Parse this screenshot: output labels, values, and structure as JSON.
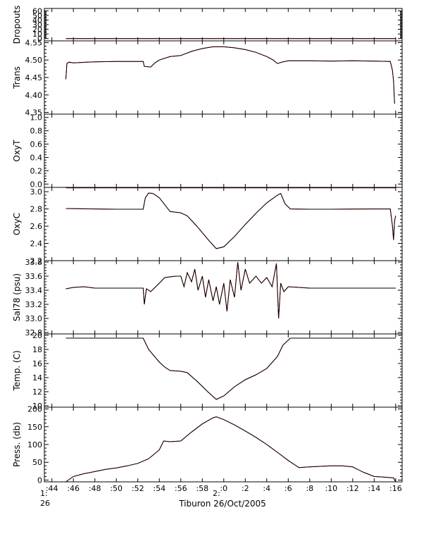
{
  "chart_data": {
    "type": "line",
    "title": "",
    "xlabel": "Tiburon 26/Oct/2005",
    "time_start_label": "1:\n26",
    "time_mid_label": "2:",
    "x_tick_labels": [
      ":44",
      ":46",
      ":48",
      ":50",
      ":52",
      ":54",
      ":56",
      ":58",
      ":0",
      ":2",
      ":4",
      ":6",
      ":8",
      ":10",
      ":12",
      ":14",
      ":16"
    ],
    "x_range_minutes": [
      43.3,
      76.6
    ],
    "colors": {
      "primary": "#000000",
      "secondary": "#ff0000",
      "frame": "#000000"
    },
    "panels": [
      {
        "id": "dropouts",
        "ylabel": "Dropouts",
        "ylim": [
          -5,
          65
        ],
        "yticks": [
          0,
          10,
          20,
          30,
          40,
          50,
          60
        ],
        "ytick_labels": [
          "0",
          "10",
          "20",
          "30",
          "40",
          "50",
          "60"
        ],
        "series": [
          {
            "points": [
              [
                45.3,
                0
              ],
              [
                76.0,
                0
              ]
            ]
          }
        ]
      },
      {
        "id": "trans",
        "ylabel": "Trans",
        "ylim": [
          4.345,
          4.555
        ],
        "yticks": [
          4.35,
          4.4,
          4.45,
          4.5,
          4.55
        ],
        "ytick_labels": [
          "4.35",
          "4.40",
          "4.45",
          "4.50",
          "4.55"
        ],
        "series": [
          {
            "points": [
              [
                45.3,
                4.445
              ],
              [
                45.4,
                4.49
              ],
              [
                45.6,
                4.494
              ],
              [
                46.0,
                4.492
              ],
              [
                48.0,
                4.495
              ],
              [
                50.0,
                4.496
              ],
              [
                52.5,
                4.496
              ],
              [
                52.6,
                4.482
              ],
              [
                53.2,
                4.48
              ],
              [
                53.6,
                4.492
              ],
              [
                54.0,
                4.5
              ],
              [
                55.0,
                4.51
              ],
              [
                56.0,
                4.513
              ],
              [
                57.0,
                4.525
              ],
              [
                58.0,
                4.533
              ],
              [
                59.0,
                4.538
              ],
              [
                60.0,
                4.538
              ],
              [
                61.0,
                4.535
              ],
              [
                62.0,
                4.53
              ],
              [
                63.0,
                4.522
              ],
              [
                64.0,
                4.51
              ],
              [
                64.6,
                4.5
              ],
              [
                65.0,
                4.49
              ],
              [
                65.4,
                4.494
              ],
              [
                66.0,
                4.498
              ],
              [
                68.0,
                4.498
              ],
              [
                70.0,
                4.497
              ],
              [
                72.0,
                4.498
              ],
              [
                74.0,
                4.497
              ],
              [
                75.5,
                4.496
              ],
              [
                75.7,
                4.47
              ],
              [
                75.8,
                4.44
              ],
              [
                75.9,
                4.375
              ]
            ]
          }
        ]
      },
      {
        "id": "oxyt",
        "ylabel": "OxyT",
        "ylim": [
          -0.05,
          1.05
        ],
        "yticks": [
          0.0,
          0.2,
          0.4,
          0.6,
          0.8,
          1.0
        ],
        "ytick_labels": [
          "0.0",
          "0.2",
          "0.4",
          "0.6",
          "0.8",
          "1.0"
        ],
        "series": []
      },
      {
        "id": "oxyc",
        "ylabel": "OxyC",
        "ylim": [
          2.2,
          3.05
        ],
        "yticks": [
          2.2,
          2.4,
          2.6,
          2.8,
          3.0
        ],
        "ytick_labels": [
          "2.2",
          "2.4",
          "2.6",
          "2.8",
          "3.0"
        ],
        "series": [
          {
            "points": [
              [
                45.3,
                3.045
              ],
              [
                76.0,
                3.045
              ]
            ]
          },
          {
            "points": [
              [
                45.3,
                2.805
              ],
              [
                48.0,
                2.8
              ],
              [
                50.0,
                2.797
              ],
              [
                52.5,
                2.797
              ],
              [
                52.7,
                2.93
              ],
              [
                53.0,
                2.985
              ],
              [
                53.4,
                2.98
              ],
              [
                54.0,
                2.93
              ],
              [
                55.0,
                2.77
              ],
              [
                56.0,
                2.755
              ],
              [
                56.6,
                2.72
              ],
              [
                57.5,
                2.6
              ],
              [
                58.5,
                2.45
              ],
              [
                59.3,
                2.34
              ],
              [
                60.0,
                2.36
              ],
              [
                61.0,
                2.48
              ],
              [
                62.0,
                2.62
              ],
              [
                63.0,
                2.75
              ],
              [
                64.0,
                2.87
              ],
              [
                65.0,
                2.96
              ],
              [
                65.3,
                2.98
              ],
              [
                65.7,
                2.86
              ],
              [
                66.2,
                2.8
              ],
              [
                68.0,
                2.797
              ],
              [
                70.0,
                2.797
              ],
              [
                72.0,
                2.798
              ],
              [
                74.0,
                2.8
              ],
              [
                75.5,
                2.8
              ],
              [
                75.7,
                2.6
              ],
              [
                75.8,
                2.44
              ],
              [
                75.9,
                2.66
              ],
              [
                76.0,
                2.72
              ]
            ]
          }
        ]
      },
      {
        "id": "sal",
        "ylabel": "Sal78 (psu)",
        "ylim": [
          32.78,
          33.82
        ],
        "yticks": [
          32.8,
          33.0,
          33.2,
          33.4,
          33.6,
          33.8
        ],
        "ytick_labels": [
          "32.8",
          "33.0",
          "33.2",
          "33.4",
          "33.6",
          "33.8"
        ],
        "series": [
          {
            "points": [
              [
                45.3,
                33.42
              ],
              [
                46.0,
                33.44
              ],
              [
                47.0,
                33.45
              ],
              [
                48.0,
                33.43
              ],
              [
                50.0,
                33.43
              ],
              [
                52.5,
                33.43
              ],
              [
                52.6,
                33.2
              ],
              [
                52.8,
                33.42
              ],
              [
                53.2,
                33.38
              ],
              [
                53.6,
                33.44
              ],
              [
                54.0,
                33.5
              ],
              [
                54.5,
                33.58
              ],
              [
                55.5,
                33.6
              ],
              [
                56.0,
                33.6
              ],
              [
                56.3,
                33.45
              ],
              [
                56.6,
                33.65
              ],
              [
                57.0,
                33.52
              ],
              [
                57.3,
                33.7
              ],
              [
                57.6,
                33.4
              ],
              [
                58.0,
                33.6
              ],
              [
                58.3,
                33.3
              ],
              [
                58.6,
                33.55
              ],
              [
                59.0,
                33.25
              ],
              [
                59.3,
                33.45
              ],
              [
                59.6,
                33.2
              ],
              [
                60.0,
                33.5
              ],
              [
                60.3,
                33.1
              ],
              [
                60.6,
                33.55
              ],
              [
                61.0,
                33.3
              ],
              [
                61.3,
                33.8
              ],
              [
                61.6,
                33.4
              ],
              [
                62.0,
                33.7
              ],
              [
                62.4,
                33.5
              ],
              [
                63.0,
                33.6
              ],
              [
                63.5,
                33.5
              ],
              [
                64.0,
                33.58
              ],
              [
                64.5,
                33.45
              ],
              [
                64.9,
                33.78
              ],
              [
                65.1,
                33.0
              ],
              [
                65.3,
                33.5
              ],
              [
                65.6,
                33.38
              ],
              [
                66.0,
                33.45
              ],
              [
                68.0,
                33.43
              ],
              [
                70.0,
                33.43
              ],
              [
                72.0,
                33.43
              ],
              [
                74.0,
                33.43
              ],
              [
                76.0,
                33.43
              ]
            ]
          }
        ]
      },
      {
        "id": "temp",
        "ylabel": "Temp. (C)",
        "ylim": [
          9.8,
          20.2
        ],
        "yticks": [
          10,
          12,
          14,
          16,
          18,
          20
        ],
        "ytick_labels": [
          "10",
          "12",
          "14",
          "16",
          "18",
          "20"
        ],
        "series": [
          {
            "points": [
              [
                45.3,
                19.6
              ],
              [
                50.0,
                19.6
              ],
              [
                52.5,
                19.6
              ],
              [
                53.0,
                18.0
              ],
              [
                54.0,
                16.2
              ],
              [
                54.5,
                15.5
              ],
              [
                55.0,
                15.0
              ],
              [
                56.0,
                14.9
              ],
              [
                56.6,
                14.7
              ],
              [
                57.5,
                13.5
              ],
              [
                58.5,
                12.0
              ],
              [
                59.3,
                10.9
              ],
              [
                60.0,
                11.4
              ],
              [
                61.0,
                12.7
              ],
              [
                62.0,
                13.7
              ],
              [
                63.0,
                14.4
              ],
              [
                64.0,
                15.3
              ],
              [
                65.0,
                17.0
              ],
              [
                65.5,
                18.6
              ],
              [
                66.2,
                19.6
              ],
              [
                70.0,
                19.6
              ],
              [
                76.0,
                19.6
              ]
            ]
          }
        ]
      },
      {
        "id": "press",
        "ylabel": "Press. (db)",
        "ylim": [
          -5,
          205
        ],
        "yticks": [
          0,
          50,
          100,
          150,
          200
        ],
        "ytick_labels": [
          "0",
          "50",
          "100",
          "150",
          "200"
        ],
        "series": [
          {
            "points": [
              [
                45.3,
                -5
              ],
              [
                46.0,
                10
              ],
              [
                47.0,
                18
              ],
              [
                48.0,
                24
              ],
              [
                49.0,
                30
              ],
              [
                50.0,
                34
              ],
              [
                51.0,
                40
              ],
              [
                52.0,
                47
              ],
              [
                53.0,
                60
              ],
              [
                54.0,
                85
              ],
              [
                54.4,
                110
              ],
              [
                55.0,
                108
              ],
              [
                56.0,
                110
              ],
              [
                57.0,
                135
              ],
              [
                58.0,
                158
              ],
              [
                59.0,
                175
              ],
              [
                59.3,
                178
              ],
              [
                60.0,
                170
              ],
              [
                61.0,
                155
              ],
              [
                62.0,
                138
              ],
              [
                63.0,
                120
              ],
              [
                64.0,
                100
              ],
              [
                65.0,
                78
              ],
              [
                66.0,
                55
              ],
              [
                67.0,
                35
              ],
              [
                68.0,
                37
              ],
              [
                70.0,
                40
              ],
              [
                71.0,
                40
              ],
              [
                72.0,
                37
              ],
              [
                73.0,
                22
              ],
              [
                74.0,
                10
              ],
              [
                75.0,
                8
              ],
              [
                75.8,
                6
              ],
              [
                76.0,
                -5
              ]
            ]
          }
        ]
      }
    ]
  }
}
